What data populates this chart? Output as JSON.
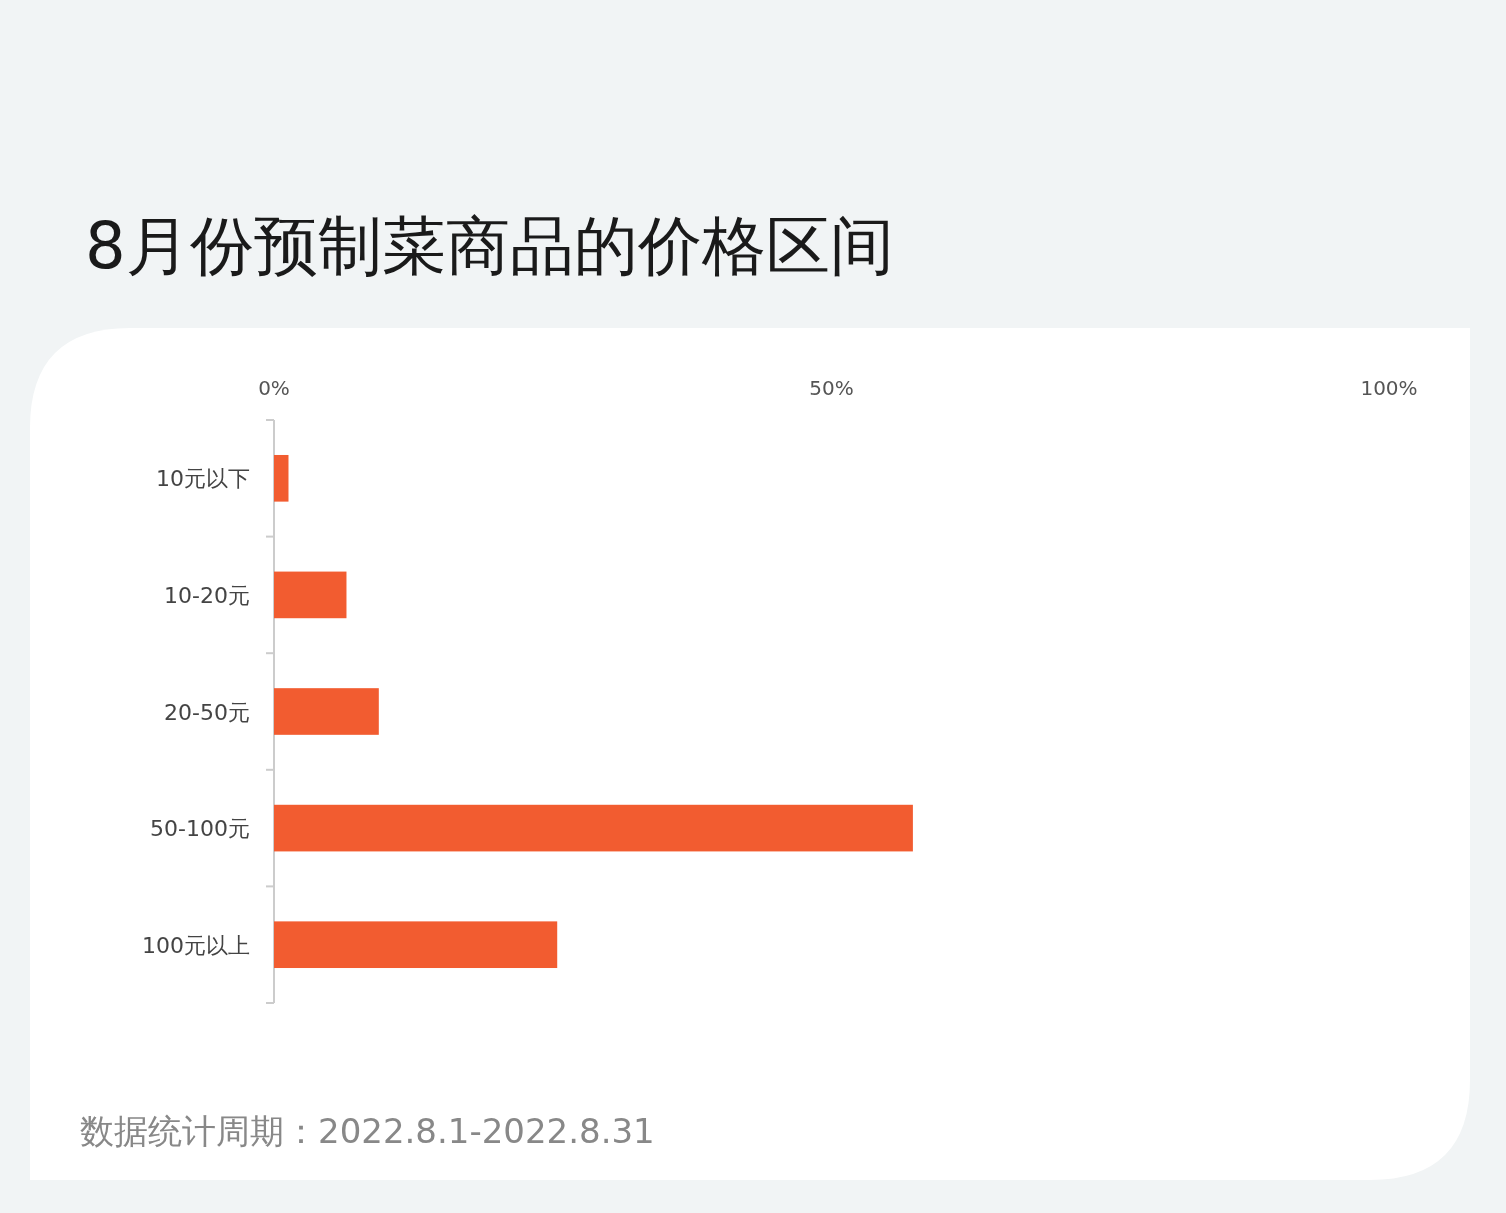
{
  "chart_data": {
    "type": "bar",
    "orientation": "horizontal",
    "title": "8月份预制菜商品的价格区间",
    "categories": [
      "10元以下",
      "10-20元",
      "20-50元",
      "50-100元",
      "100元以上"
    ],
    "values": [
      1.3,
      6.5,
      9.4,
      57.3,
      25.4
    ],
    "color": "#f25c30",
    "xlim": [
      0,
      100
    ],
    "xticks": [
      {
        "value": 0,
        "label": "0%"
      },
      {
        "value": 50,
        "label": "50%"
      },
      {
        "value": 100,
        "label": "100%"
      }
    ],
    "annotations": [
      "数据统计周期：2022.8.1-2022.8.31"
    ]
  }
}
